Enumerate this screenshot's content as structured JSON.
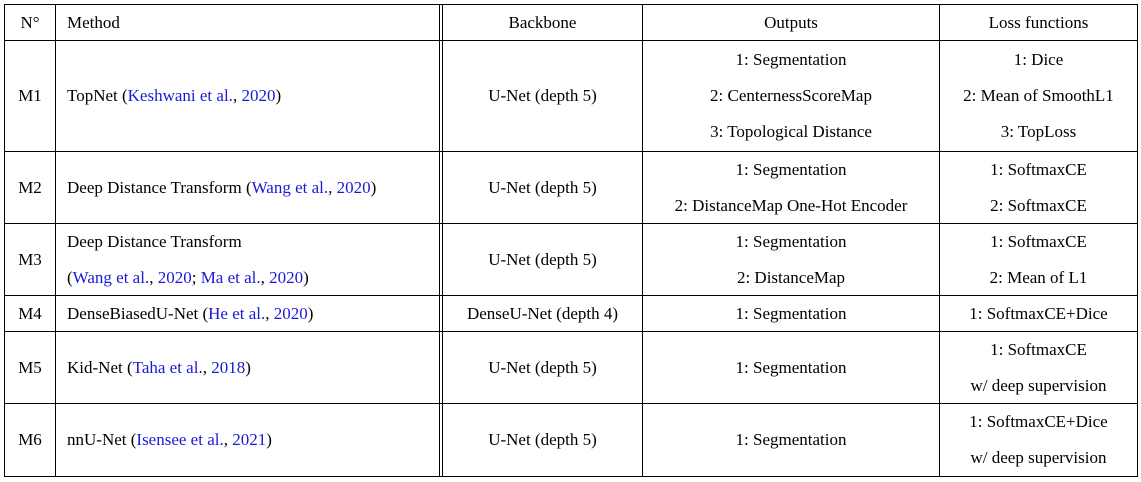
{
  "header": {
    "no": "N°",
    "method": "Method",
    "backbone": "Backbone",
    "outputs": "Outputs",
    "loss": "Loss functions"
  },
  "rows": [
    {
      "id": "M1",
      "method": {
        "l1": [
          "TopNet (",
          "Keshwani et al.",
          ", ",
          "2020",
          ")"
        ]
      },
      "backbone": "U-Net (depth 5)",
      "outputs": [
        "1: Segmentation",
        "2: CenternessScoreMap",
        "3: Topological Distance"
      ],
      "loss": [
        "1: Dice",
        "2: Mean of SmoothL1",
        "3: TopLoss"
      ]
    },
    {
      "id": "M2",
      "method": {
        "l1": [
          "Deep Distance Transform (",
          "Wang et al.",
          ", ",
          "2020",
          ")"
        ]
      },
      "backbone": "U-Net (depth 5)",
      "outputs": [
        "1: Segmentation",
        "2: DistanceMap One-Hot Encoder"
      ],
      "loss": [
        "1: SoftmaxCE",
        "2: SoftmaxCE"
      ]
    },
    {
      "id": "M3",
      "method": {
        "l1": "Deep Distance Transform",
        "l2": [
          "(",
          "Wang et al.",
          ", ",
          "2020",
          "; ",
          "Ma et al.",
          ", ",
          "2020",
          ")"
        ]
      },
      "backbone": "U-Net (depth 5)",
      "outputs": [
        "1: Segmentation",
        "2: DistanceMap"
      ],
      "loss": [
        "1: SoftmaxCE",
        "2: Mean of L1"
      ]
    },
    {
      "id": "M4",
      "method": {
        "l1": [
          "DenseBiasedU-Net (",
          "He et al.",
          ", ",
          "2020",
          ")"
        ]
      },
      "backbone": "DenseU-Net (depth 4)",
      "outputs": [
        "1: Segmentation"
      ],
      "loss": [
        "1: SoftmaxCE+Dice"
      ]
    },
    {
      "id": "M5",
      "method": {
        "l1": [
          "Kid-Net (",
          "Taha et al.",
          ", ",
          "2018",
          ")"
        ]
      },
      "backbone": "U-Net (depth 5)",
      "outputs": [
        "1: Segmentation"
      ],
      "loss": [
        "1: SoftmaxCE",
        "w/ deep supervision"
      ]
    },
    {
      "id": "M6",
      "method": {
        "l1": [
          "nnU-Net (",
          "Isensee et al.",
          ", ",
          "2021",
          ")"
        ]
      },
      "backbone": "U-Net (depth 5)",
      "outputs": [
        "1: Segmentation"
      ],
      "loss": [
        "1: SoftmaxCE+Dice",
        "w/ deep supervision"
      ]
    }
  ]
}
